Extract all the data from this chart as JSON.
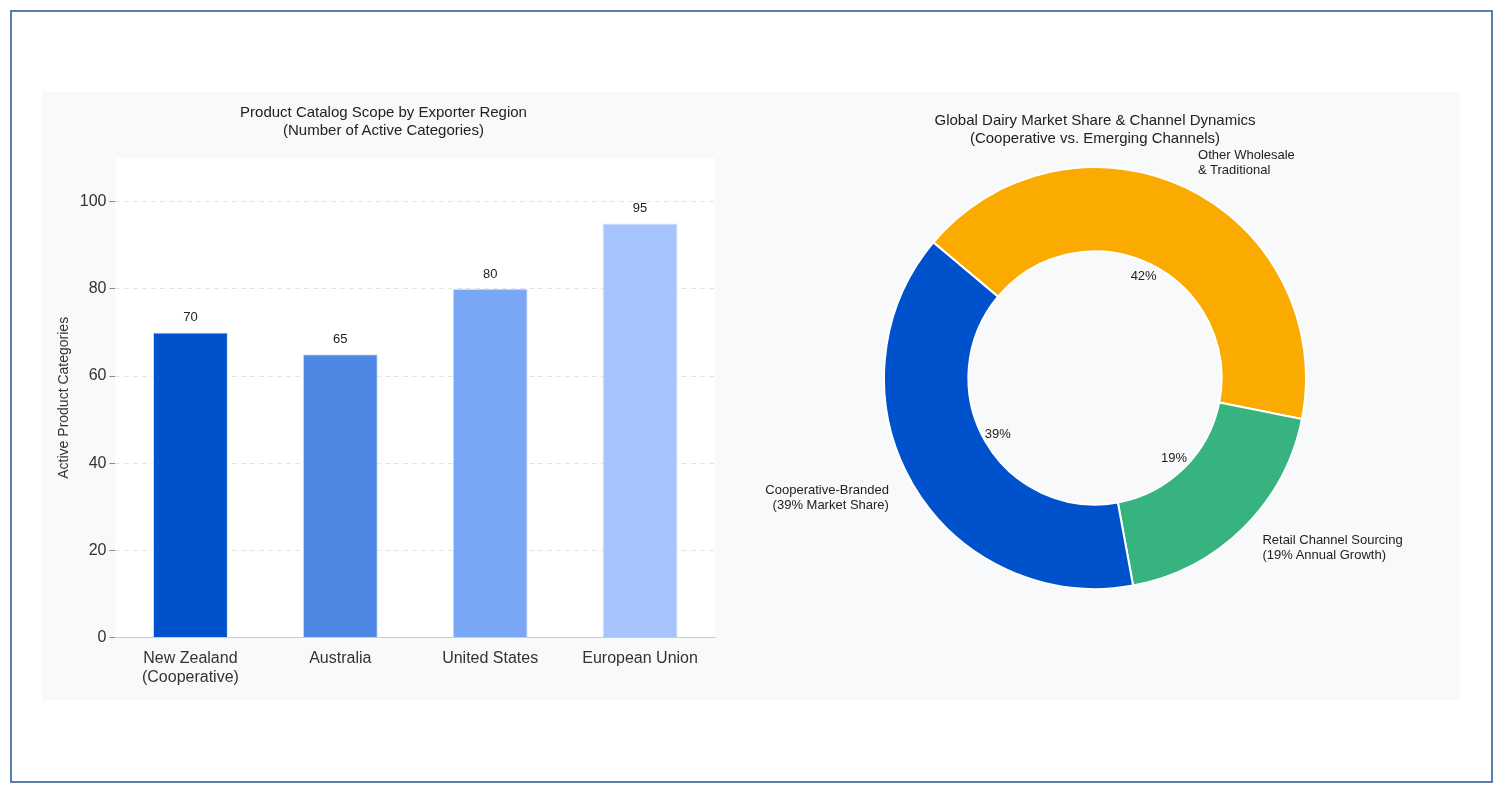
{
  "chart_data": [
    {
      "type": "bar",
      "title": "Product Catalog Scope by Exporter Region\n(Number of Active Categories)",
      "ylabel": "Active Product Categories",
      "categories": [
        "New Zealand\n(Cooperative)",
        "Australia",
        "United States",
        "European Union"
      ],
      "values": [
        70,
        65,
        80,
        95
      ],
      "colors": [
        "#0052cc",
        "#4d86e3",
        "#7aa7f5",
        "#a6c5fc"
      ],
      "ylim": [
        0,
        110
      ],
      "yticks": [
        0,
        20,
        40,
        60,
        80,
        100
      ],
      "grid": "y",
      "data_labels": true,
      "legend": false
    },
    {
      "type": "donut",
      "title": "Global Dairy Market Share & Channel Dynamics\n(Cooperative vs. Emerging Channels)",
      "categories": [
        "Other Wholesale\n& Traditional",
        "Retail Channel Sourcing\n(19% Annual Growth)",
        "Cooperative-Branded\n(39% Market Share)"
      ],
      "values": [
        42,
        19,
        39
      ],
      "colors": [
        "#fbab00",
        "#36b37e",
        "#0052cc"
      ],
      "value_labels": [
        "42%",
        "19%",
        "39%"
      ],
      "legend": false
    }
  ]
}
